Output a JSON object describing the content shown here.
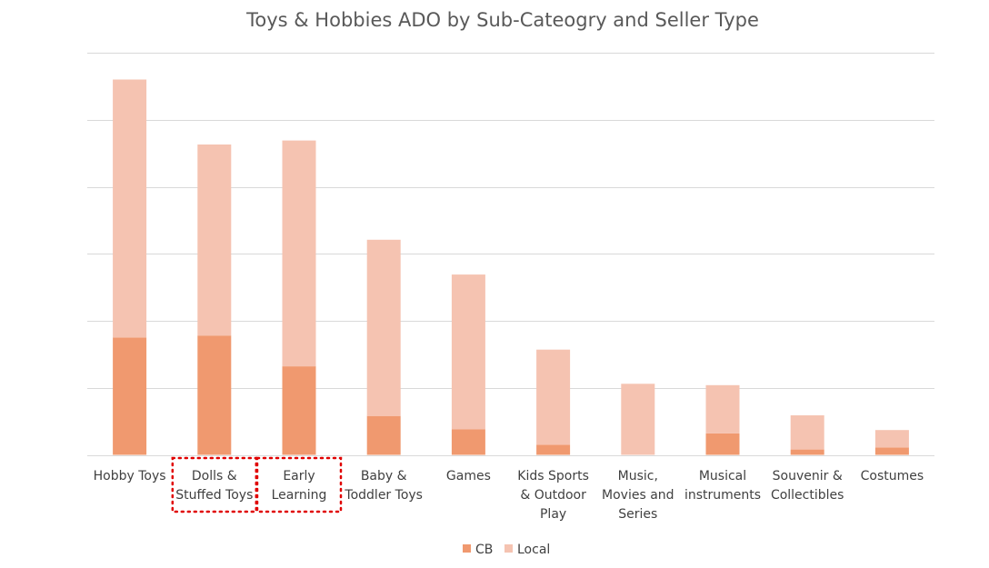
{
  "chart_data": {
    "type": "bar",
    "stacked": true,
    "title": "Toys & Hobbies ADO by Sub-Cateogry and Seller Type",
    "xlabel": "",
    "ylabel": "",
    "y_tick_labels_shown": false,
    "ylim": [
      0,
      6
    ],
    "grid": true,
    "legend_position": "bottom",
    "categories": [
      "Hobby Toys",
      "Dolls & Stuffed Toys",
      "Early Learning",
      "Baby & Toddler Toys",
      "Games",
      "Kids Sports & Outdoor Play",
      "Music, Movies and Series",
      "Musical instruments",
      "Souvenir & Collectibles",
      "Costumes"
    ],
    "category_label_lines": [
      [
        "Hobby Toys"
      ],
      [
        "Dolls &",
        "Stuffed Toys"
      ],
      [
        "Early",
        "Learning"
      ],
      [
        "Baby &",
        "Toddler Toys"
      ],
      [
        "Games"
      ],
      [
        "Kids Sports",
        "& Outdoor",
        "Play"
      ],
      [
        "Music,",
        "Movies and",
        "Series"
      ],
      [
        "Musical",
        "instruments"
      ],
      [
        "Souvenir &",
        "Collectibles"
      ],
      [
        "Costumes"
      ]
    ],
    "series": [
      {
        "name": "CB",
        "color": "#f0996f",
        "values": [
          1.75,
          1.78,
          1.32,
          0.58,
          0.38,
          0.15,
          0.0,
          0.32,
          0.08,
          0.11
        ]
      },
      {
        "name": "Local",
        "color": "#f5c3b1",
        "values": [
          3.85,
          2.85,
          3.37,
          2.63,
          2.31,
          1.42,
          1.06,
          0.72,
          0.51,
          0.26
        ]
      }
    ],
    "highlighted_categories": [
      "Dolls & Stuffed Toys",
      "Early Learning"
    ],
    "highlight_color": "#e00000"
  }
}
